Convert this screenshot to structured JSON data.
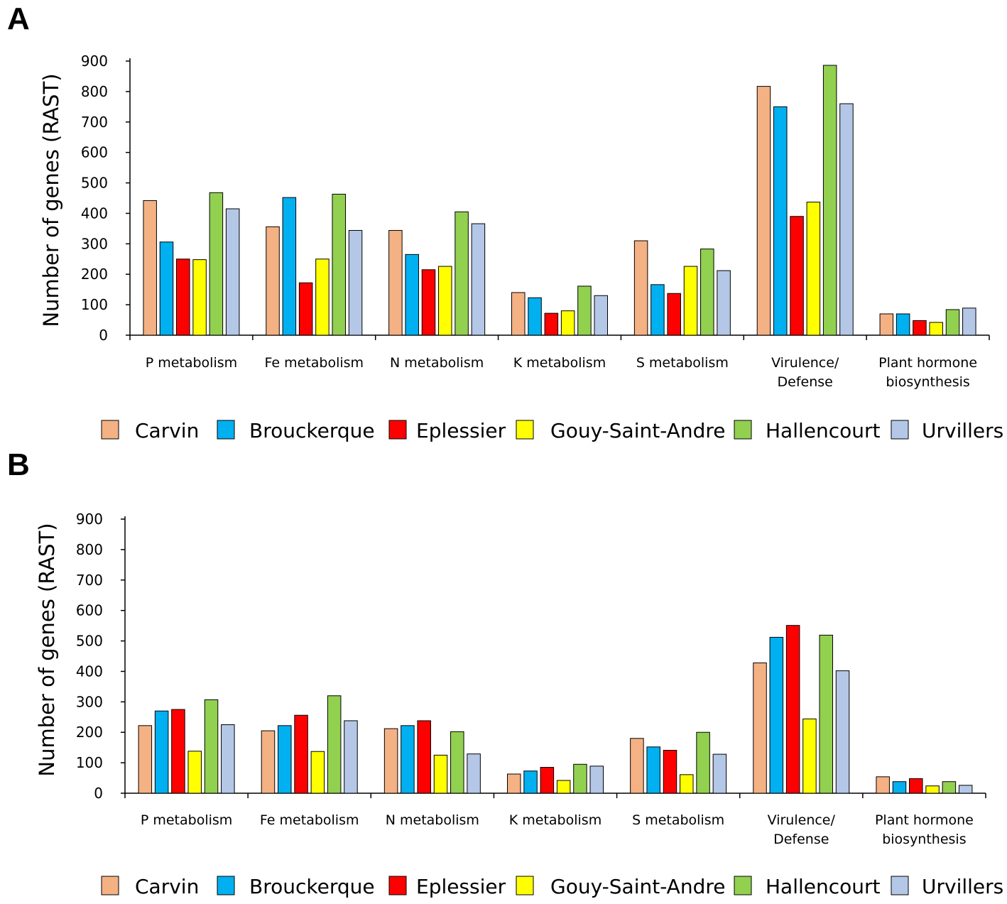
{
  "panels": [
    {
      "label": "A",
      "chart_data": {
        "type": "bar",
        "title": "",
        "xlabel": "",
        "ylabel": "Number of genes (RAST)",
        "ylim": [
          0,
          900
        ],
        "yticks": [
          "0",
          "100",
          "200",
          "300",
          "400",
          "500",
          "600",
          "700",
          "800",
          "900"
        ],
        "categories": [
          [
            "P metabolism"
          ],
          [
            "Fe metabolism"
          ],
          [
            "N metabolism"
          ],
          [
            "K metabolism"
          ],
          [
            "S metabolism"
          ],
          [
            "Virulence/",
            "Defense"
          ],
          [
            "Plant hormone",
            "biosynthesis"
          ]
        ],
        "series": [
          {
            "name": "Carvin",
            "color": "#F4B183",
            "values": [
              442,
              356,
              344,
              140,
              310,
              817,
              70
            ]
          },
          {
            "name": "Brouckerque",
            "color": "#00B0F0",
            "values": [
              306,
              452,
              265,
              123,
              166,
              750,
              70
            ]
          },
          {
            "name": "Eplessier",
            "color": "#FF0000",
            "values": [
              250,
              172,
              215,
              72,
              137,
              390,
              48
            ]
          },
          {
            "name": "Gouy-Saint-Andre",
            "color": "#FFFF00",
            "values": [
              248,
              250,
              226,
              80,
              226,
              437,
              42
            ]
          },
          {
            "name": "Hallencourt",
            "color": "#92D050",
            "values": [
              468,
              463,
              405,
              161,
              283,
              886,
              84
            ]
          },
          {
            "name": "Urvillers",
            "color": "#B4C7E7",
            "values": [
              415,
              344,
              366,
              130,
              212,
              760,
              89
            ]
          }
        ],
        "legend_position": "bottom"
      }
    },
    {
      "label": "B",
      "chart_data": {
        "type": "bar",
        "title": "",
        "xlabel": "",
        "ylabel": "Number of genes (RAST)",
        "ylim": [
          0,
          900
        ],
        "yticks": [
          "0",
          "100",
          "200",
          "300",
          "400",
          "500",
          "600",
          "700",
          "800",
          "900"
        ],
        "categories": [
          [
            "P metabolism"
          ],
          [
            "Fe metabolism"
          ],
          [
            "N metabolism"
          ],
          [
            "K metabolism"
          ],
          [
            "S metabolism"
          ],
          [
            "Virulence/",
            "Defense"
          ],
          [
            "Plant hormone",
            "biosynthesis"
          ]
        ],
        "series": [
          {
            "name": "Carvin",
            "color": "#F4B183",
            "values": [
              222,
              205,
              212,
              63,
              180,
              428,
              54
            ]
          },
          {
            "name": "Brouckerque",
            "color": "#00B0F0",
            "values": [
              270,
              222,
              222,
              73,
              152,
              512,
              38
            ]
          },
          {
            "name": "Eplessier",
            "color": "#FF0000",
            "values": [
              275,
              256,
              238,
              85,
              141,
              551,
              48
            ]
          },
          {
            "name": "Gouy-Saint-Andre",
            "color": "#FFFF00",
            "values": [
              138,
              137,
              125,
              42,
              61,
              244,
              24
            ]
          },
          {
            "name": "Hallencourt",
            "color": "#92D050",
            "values": [
              307,
              320,
              202,
              95,
              200,
              519,
              38
            ]
          },
          {
            "name": "Urvillers",
            "color": "#B4C7E7",
            "values": [
              225,
              238,
              129,
              89,
              128,
              402,
              26
            ]
          }
        ],
        "legend_position": "bottom"
      }
    }
  ]
}
